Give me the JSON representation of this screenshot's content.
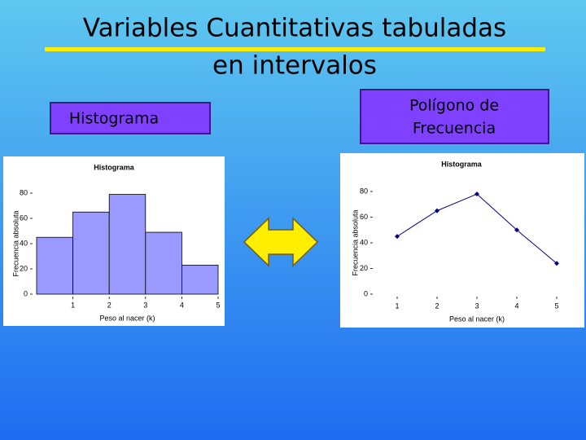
{
  "header": {
    "title_line1": "Variables Cuantitativas tabuladas",
    "title_line2": "en intervalos"
  },
  "labels": {
    "left": "Histograma",
    "right_line1": "Polígono de",
    "right_line2": "Frecuencia"
  },
  "chart_data": [
    {
      "type": "histogram",
      "title": "Histograma",
      "x_label": "Peso al nacer (k)",
      "y_label": "Frecuencia absoluta",
      "bins": [
        0,
        1,
        2,
        3,
        4,
        5
      ],
      "values": [
        45,
        65,
        79,
        49,
        23
      ],
      "color": "#9999ff",
      "xlim": [
        0,
        5
      ],
      "xticks": [
        1,
        2,
        3,
        4,
        5
      ],
      "ylim": [
        0,
        80
      ],
      "yticks": [
        0,
        20,
        40,
        60,
        80
      ]
    },
    {
      "type": "line",
      "title": "Histograma",
      "x_label": "Peso al nacer (k)",
      "y_label": "Frecuencia absoluta",
      "x": [
        1,
        2,
        3,
        4,
        5
      ],
      "values": [
        45,
        65,
        78,
        50,
        24
      ],
      "color": "#000080",
      "xlim": [
        0.5,
        5.5
      ],
      "xticks": [
        1,
        2,
        3,
        4,
        5
      ],
      "ylim": [
        0,
        80
      ],
      "yticks": [
        0,
        20,
        40,
        60,
        80
      ]
    }
  ]
}
